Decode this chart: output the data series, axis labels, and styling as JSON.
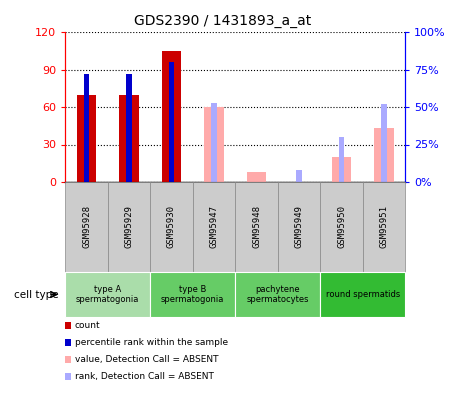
{
  "title": "GDS2390 / 1431893_a_at",
  "samples": [
    "GSM95928",
    "GSM95929",
    "GSM95930",
    "GSM95947",
    "GSM95948",
    "GSM95949",
    "GSM95950",
    "GSM95951"
  ],
  "count_values": [
    70,
    70,
    105,
    null,
    null,
    null,
    null,
    null
  ],
  "rank_values": [
    72,
    72,
    80,
    null,
    null,
    null,
    null,
    null
  ],
  "absent_count_values": [
    null,
    null,
    null,
    60,
    8,
    null,
    20,
    43
  ],
  "absent_rank_values": [
    null,
    null,
    null,
    53,
    null,
    8,
    30,
    52
  ],
  "count_color": "#cc0000",
  "rank_color": "#0000cc",
  "absent_count_color": "#ffaaaa",
  "absent_rank_color": "#aaaaff",
  "ylim_left": [
    0,
    120
  ],
  "ylim_right": [
    0,
    100
  ],
  "yticks_left": [
    0,
    30,
    60,
    90,
    120
  ],
  "ytick_labels_right": [
    "0%",
    "25%",
    "50%",
    "75%",
    "100%"
  ],
  "yticks_right": [
    0,
    25,
    50,
    75,
    100
  ],
  "cell_type_groups": [
    {
      "label": "type A\nspermatogonia",
      "start": 0,
      "end": 2,
      "color": "#aaddaa"
    },
    {
      "label": "type B\nspermatogonia",
      "start": 2,
      "end": 4,
      "color": "#66cc66"
    },
    {
      "label": "pachytene\nspermatocytes",
      "start": 4,
      "end": 6,
      "color": "#66cc66"
    },
    {
      "label": "round spermatids",
      "start": 6,
      "end": 8,
      "color": "#33bb33"
    }
  ],
  "legend_items": [
    {
      "color": "#cc0000",
      "label": "count"
    },
    {
      "color": "#0000cc",
      "label": "percentile rank within the sample"
    },
    {
      "color": "#ffaaaa",
      "label": "value, Detection Call = ABSENT"
    },
    {
      "color": "#aaaaff",
      "label": "rank, Detection Call = ABSENT"
    }
  ],
  "bar_width": 0.45,
  "rank_bar_width": 0.13,
  "sample_box_color": "#cccccc",
  "sample_box_edge": "#888888"
}
